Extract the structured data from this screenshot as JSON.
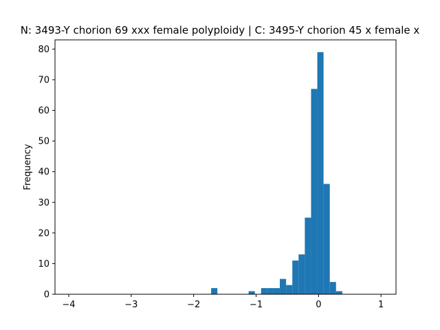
{
  "chart_data": {
    "type": "bar",
    "title": "N: 3493-Y chorion 69 xxx female polyploidy | C: 3495-Y chorion 45 x female x",
    "xlabel": "",
    "ylabel": "Frequency",
    "xlim": [
      -4.22,
      1.24
    ],
    "ylim": [
      0,
      83
    ],
    "grid": false,
    "color": "#1f77b4",
    "xticks": [
      {
        "value": -4,
        "label": "−4"
      },
      {
        "value": -3,
        "label": "−3"
      },
      {
        "value": -2,
        "label": "−2"
      },
      {
        "value": -1,
        "label": "−1"
      },
      {
        "value": 0,
        "label": "0"
      },
      {
        "value": 1,
        "label": "1"
      }
    ],
    "yticks": [
      {
        "value": 0,
        "label": "0"
      },
      {
        "value": 10,
        "label": "10"
      },
      {
        "value": 20,
        "label": "20"
      },
      {
        "value": 30,
        "label": "30"
      },
      {
        "value": 40,
        "label": "40"
      },
      {
        "value": 50,
        "label": "50"
      },
      {
        "value": 60,
        "label": "60"
      },
      {
        "value": 70,
        "label": "70"
      },
      {
        "value": 80,
        "label": "80"
      }
    ],
    "bins": [
      {
        "x0": -1.72,
        "x1": -1.62,
        "count": 2
      },
      {
        "x0": -1.12,
        "x1": -1.02,
        "count": 1
      },
      {
        "x0": -0.92,
        "x1": -0.82,
        "count": 2
      },
      {
        "x0": -0.82,
        "x1": -0.72,
        "count": 2
      },
      {
        "x0": -0.72,
        "x1": -0.62,
        "count": 2
      },
      {
        "x0": -0.62,
        "x1": -0.52,
        "count": 5
      },
      {
        "x0": -0.52,
        "x1": -0.42,
        "count": 3
      },
      {
        "x0": -0.42,
        "x1": -0.32,
        "count": 11
      },
      {
        "x0": -0.32,
        "x1": -0.22,
        "count": 13
      },
      {
        "x0": -0.22,
        "x1": -0.12,
        "count": 25
      },
      {
        "x0": -0.12,
        "x1": -0.02,
        "count": 67
      },
      {
        "x0": -0.02,
        "x1": 0.08,
        "count": 79
      },
      {
        "x0": 0.08,
        "x1": 0.18,
        "count": 36
      },
      {
        "x0": 0.18,
        "x1": 0.28,
        "count": 4
      },
      {
        "x0": 0.28,
        "x1": 0.38,
        "count": 1
      }
    ]
  }
}
